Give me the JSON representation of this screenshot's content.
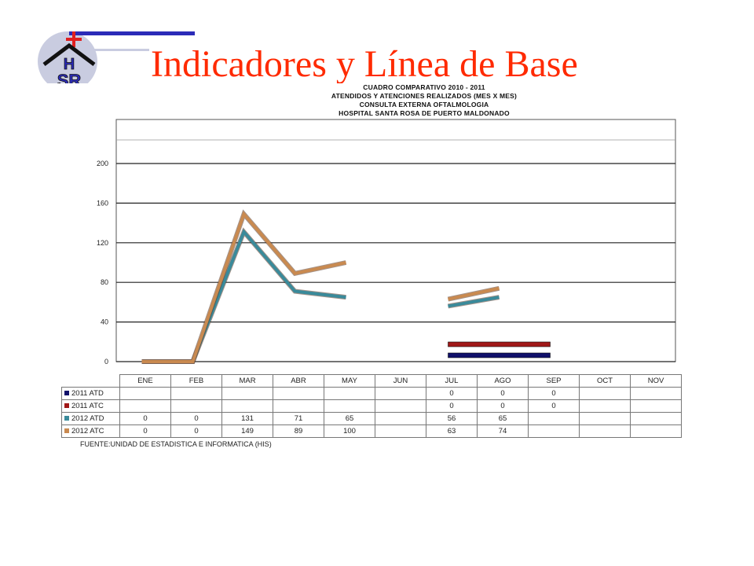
{
  "slide": {
    "title": "Indicadores y Línea de Base",
    "logo_letters": "H\nSR",
    "source_note": "FUENTE:UNIDAD  DE ESTADISTICA  E INFORMATICA  (HIS)"
  },
  "colors": {
    "title": "#ff2a00",
    "logo_blue": "#2b2bb8",
    "logo_red": "#e02020"
  },
  "chart_data": {
    "type": "line",
    "title_lines": [
      "CUADRO COMPARATIVO 2010 - 2011",
      "ATENDIDOS Y ATENCIONES  REALIZADOS (MES X MES)",
      "CONSULTA EXTERNA OFTALMOLOGIA",
      "HOSPITAL SANTA ROSA DE PUERTO MALDONADO"
    ],
    "categories": [
      "ENE",
      "FEB",
      "MAR",
      "ABR",
      "MAY",
      "JUN",
      "JUL",
      "AGO",
      "SEP",
      "OCT",
      "NOV"
    ],
    "ylim": [
      0,
      240
    ],
    "yticks": [
      "0",
      "40",
      "80",
      "120",
      "160",
      "200"
    ],
    "grid": true,
    "series": [
      {
        "name": "2011 ATD",
        "color": "#10106a",
        "values": [
          null,
          null,
          null,
          null,
          null,
          null,
          0,
          0,
          0,
          null,
          null
        ],
        "table": [
          "",
          "",
          "",
          "",
          "",
          "",
          "0",
          "0",
          "0",
          "",
          ""
        ]
      },
      {
        "name": "2011 ATC",
        "color": "#a01818",
        "values": [
          null,
          null,
          null,
          null,
          null,
          null,
          0,
          0,
          0,
          null,
          null
        ],
        "table": [
          "",
          "",
          "",
          "",
          "",
          "",
          "0",
          "0",
          "0",
          "",
          ""
        ]
      },
      {
        "name": "2012 ATD",
        "color": "#3a8a9a",
        "values": [
          0,
          0,
          131,
          71,
          65,
          null,
          56,
          65,
          null,
          null,
          null
        ],
        "table": [
          "0",
          "0",
          "131",
          "71",
          "65",
          "",
          "56",
          "65",
          "",
          "",
          ""
        ]
      },
      {
        "name": "2012 ATC",
        "color": "#c98a50",
        "values": [
          0,
          0,
          149,
          89,
          100,
          null,
          63,
          74,
          null,
          null,
          null
        ],
        "table": [
          "0",
          "0",
          "149",
          "89",
          "100",
          "",
          "63",
          "74",
          "",
          "",
          ""
        ]
      }
    ]
  }
}
